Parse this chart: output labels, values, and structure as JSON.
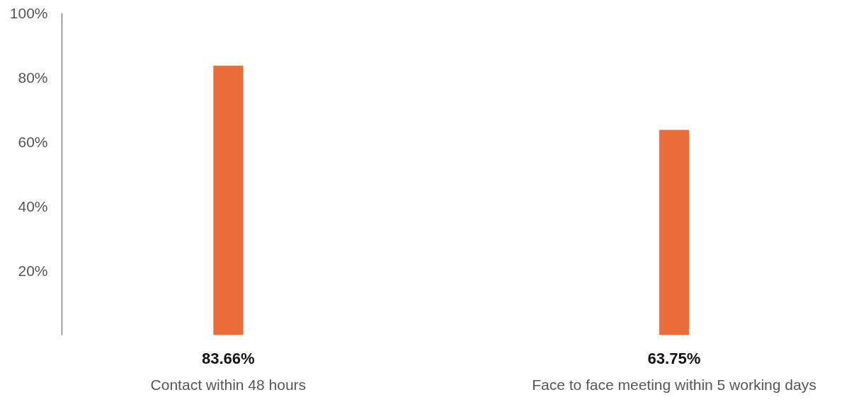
{
  "chart_data": {
    "type": "bar",
    "categories": [
      "Contact within 48 hours",
      "Face to face meeting within 5 working days"
    ],
    "values": [
      83.66,
      63.75
    ],
    "value_labels": [
      "83.66%",
      "63.75%"
    ],
    "color": "#ec6d3c",
    "ylim": [
      0,
      100
    ],
    "yticks": [
      {
        "value": 20,
        "label": "20%"
      },
      {
        "value": 40,
        "label": "40%"
      },
      {
        "value": 60,
        "label": "60%"
      },
      {
        "value": 80,
        "label": "80%"
      },
      {
        "value": 100,
        "label": "100%"
      }
    ],
    "grid": false
  }
}
